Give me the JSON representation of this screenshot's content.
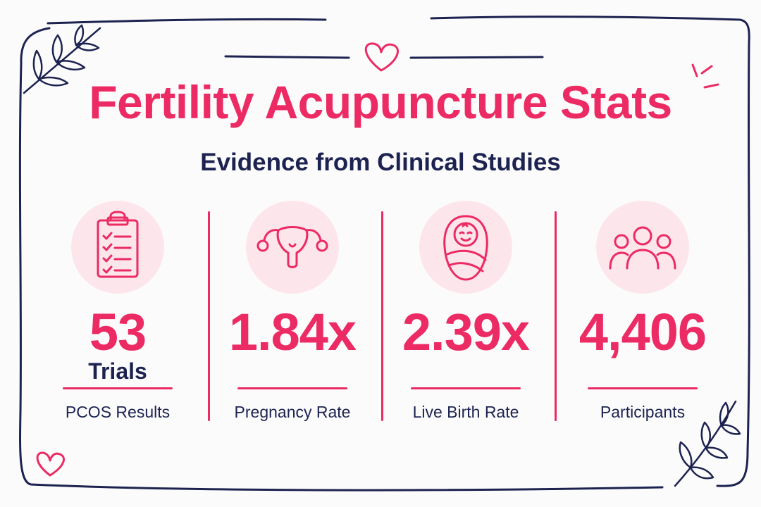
{
  "header": {
    "title": "Fertility Acupuncture Stats",
    "subtitle": "Evidence from Clinical Studies"
  },
  "stats": [
    {
      "icon": "clipboard-checklist-icon",
      "value": "53",
      "unit": "Trials",
      "label": "PCOS Results"
    },
    {
      "icon": "uterus-icon",
      "value": "1.84x",
      "unit": "",
      "label": "Pregnancy Rate"
    },
    {
      "icon": "swaddled-baby-icon",
      "value": "2.39x",
      "unit": "",
      "label": "Live Birth Rate"
    },
    {
      "icon": "people-group-icon",
      "value": "4,406",
      "unit": "",
      "label": "Participants"
    }
  ],
  "decorations": [
    "heart-icon",
    "leaf-branch-icon",
    "sparkle-lines-icon"
  ],
  "colors": {
    "accent": "#ec2a63",
    "text": "#1d2350",
    "icon_background": "#fde6eb",
    "border": "#1d2350"
  }
}
